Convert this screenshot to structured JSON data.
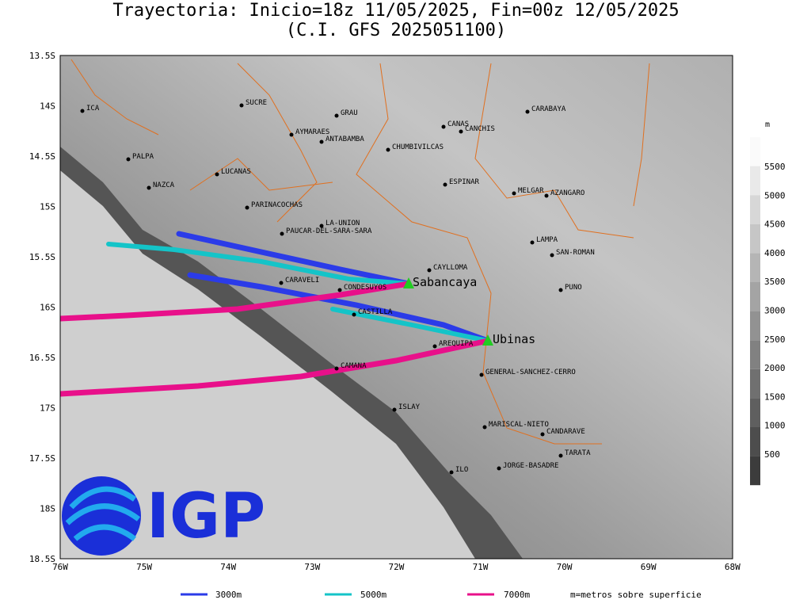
{
  "header": {
    "title": "Trayectoria: Inicio=18z 11/05/2025, Fin=00z 12/05/2025",
    "subtitle": "(C.I. GFS 2025051100)"
  },
  "map": {
    "x_labels": [
      "76W",
      "75W",
      "74W",
      "73W",
      "72W",
      "71W",
      "70W",
      "69W",
      "68W"
    ],
    "y_labels": [
      "13.5S",
      "14S",
      "14.5S",
      "15S",
      "15.5S",
      "16S",
      "16.5S",
      "17S",
      "17.5S",
      "18S",
      "18.5S"
    ],
    "places": [
      "ICA",
      "SUCRE",
      "GRAU",
      "CANAS",
      "CANCHIS",
      "CARABAYA",
      "AYMARAES",
      "ANTABAMBA",
      "CHUMBIVILCAS",
      "PALPA",
      "LUCANAS",
      "NAZCA",
      "ESPINAR",
      "MELGAR",
      "AZANGARO",
      "PARINACOCHAS",
      "LA-UNION",
      "PAUCAR-DEL-SARA-SARA",
      "LAMPA",
      "SAN-ROMAN",
      "CAYLLOMA",
      "CARAVELI",
      "CONDESUYOS",
      "PUNO",
      "CASTILLA",
      "AREQUIPA",
      "GENERAL-SANCHEZ-CERRO",
      "CAMANA",
      "ISLAY",
      "MARISCAL-NIETO",
      "CANDARAVE",
      "TARATA",
      "ILO",
      "JORGE-BASADRE"
    ],
    "volcanoes": [
      "Sabancaya",
      "Ubinas"
    ]
  },
  "colorbar": {
    "unit": "m",
    "labels": [
      "5500",
      "5000",
      "4500",
      "4000",
      "3500",
      "3000",
      "2500",
      "2000",
      "1500",
      "1000",
      "500"
    ]
  },
  "legend": [
    "3000m",
    "5000m",
    "7000m"
  ],
  "note": "m=metros sobre superficie",
  "logo": "IGP"
}
